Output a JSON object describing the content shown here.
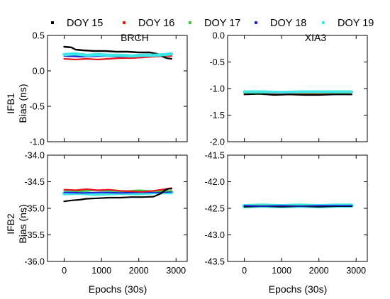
{
  "legend": [
    {
      "label": "DOY 15",
      "color": "#000000"
    },
    {
      "label": "DOY 16",
      "color": "#e8141e"
    },
    {
      "label": "DOY 17",
      "color": "#3ec83e"
    },
    {
      "label": "DOY 18",
      "color": "#2121d6"
    },
    {
      "label": "DOY 19",
      "color": "#3ee6e6"
    }
  ],
  "columns": [
    "BRCH",
    "XIA3"
  ],
  "rows": [
    {
      "label_line1": "IFB1",
      "label_line2": "Bias (ns)"
    },
    {
      "label_line1": "IFB2",
      "label_line2": "Bias (ns)"
    }
  ],
  "xlabel": "Epochs (30s)",
  "chart_data": [
    {
      "type": "line",
      "station": "BRCH",
      "row": "IFB1",
      "xlim": [
        -450,
        3300
      ],
      "ylim": [
        -1.0,
        0.5
      ],
      "xticks": [
        0,
        1000,
        2000,
        3000
      ],
      "yticks": [
        -1.0,
        -0.5,
        0.0,
        0.5
      ],
      "ytick_labels": [
        "-1.0",
        "-0.5",
        "0.0",
        "0.5"
      ],
      "series": [
        {
          "color": "#3ec83e",
          "x": [
            0,
            500,
            1000,
            1500,
            2000,
            2500,
            2880
          ],
          "y": [
            0.22,
            0.21,
            0.22,
            0.21,
            0.2,
            0.21,
            0.23
          ],
          "width": 2.2
        },
        {
          "color": "#2121d6",
          "x": [
            0,
            500,
            1000,
            1500,
            2000,
            2500,
            2880
          ],
          "y": [
            0.21,
            0.2,
            0.21,
            0.2,
            0.2,
            0.21,
            0.22
          ],
          "width": 2.2
        },
        {
          "color": "#e8141e",
          "x": [
            0,
            300,
            600,
            900,
            1200,
            1500,
            1800,
            2100,
            2400,
            2700,
            2880
          ],
          "y": [
            0.17,
            0.16,
            0.17,
            0.16,
            0.17,
            0.18,
            0.18,
            0.19,
            0.2,
            0.21,
            0.21
          ],
          "width": 2.2
        },
        {
          "color": "#000000",
          "x": [
            0,
            200,
            300,
            500,
            800,
            1100,
            1400,
            1700,
            2000,
            2300,
            2500,
            2650,
            2750,
            2880
          ],
          "y": [
            0.34,
            0.33,
            0.3,
            0.29,
            0.28,
            0.28,
            0.27,
            0.27,
            0.26,
            0.26,
            0.24,
            0.2,
            0.18,
            0.17
          ],
          "width": 2.4
        },
        {
          "color": "#3ee6e6",
          "x": [
            0,
            300,
            600,
            900,
            1200,
            1500,
            1800,
            2100,
            2400,
            2700,
            2880
          ],
          "y": [
            0.23,
            0.24,
            0.22,
            0.23,
            0.22,
            0.22,
            0.21,
            0.22,
            0.22,
            0.23,
            0.24
          ],
          "width": 4.5
        }
      ]
    },
    {
      "type": "line",
      "station": "XIA3",
      "row": "IFB1",
      "xlim": [
        -450,
        3300
      ],
      "ylim": [
        -2.0,
        0.0
      ],
      "xticks": [
        0,
        1000,
        2000,
        3000
      ],
      "yticks": [
        -2.0,
        -1.5,
        -1.0,
        -0.5,
        0.0
      ],
      "ytick_labels": [
        "-2.0",
        "-1.5",
        "-1.0",
        "-0.5",
        "0.0"
      ],
      "series": [
        {
          "color": "#e8141e",
          "x": [
            0,
            500,
            1000,
            1500,
            2000,
            2500,
            2880
          ],
          "y": [
            -1.09,
            -1.1,
            -1.09,
            -1.1,
            -1.09,
            -1.09,
            -1.08
          ],
          "width": 2.2
        },
        {
          "color": "#000000",
          "x": [
            0,
            400,
            800,
            1200,
            1600,
            2000,
            2400,
            2880
          ],
          "y": [
            -1.11,
            -1.1,
            -1.12,
            -1.11,
            -1.12,
            -1.12,
            -1.11,
            -1.11
          ],
          "width": 2.2
        },
        {
          "color": "#3ec83e",
          "x": [
            0,
            1000,
            2000,
            2880
          ],
          "y": [
            -1.08,
            -1.08,
            -1.08,
            -1.08
          ],
          "width": 2.0
        },
        {
          "color": "#2121d6",
          "x": [
            0,
            1000,
            2000,
            2880
          ],
          "y": [
            -1.07,
            -1.07,
            -1.07,
            -1.07
          ],
          "width": 2.0
        },
        {
          "color": "#3ee6e6",
          "x": [
            0,
            500,
            1000,
            1500,
            2000,
            2500,
            2880
          ],
          "y": [
            -1.06,
            -1.06,
            -1.07,
            -1.06,
            -1.06,
            -1.06,
            -1.06
          ],
          "width": 4.0
        }
      ]
    },
    {
      "type": "line",
      "station": "BRCH",
      "row": "IFB2",
      "xlim": [
        -450,
        3300
      ],
      "ylim": [
        -36.0,
        -34.0
      ],
      "xticks": [
        0,
        1000,
        2000,
        3000
      ],
      "yticks": [
        -36.0,
        -35.5,
        -35.0,
        -34.5,
        -34.0
      ],
      "ytick_labels": [
        "-36.0",
        "-35.5",
        "-35.0",
        "-34.5",
        "-34.0"
      ],
      "series": [
        {
          "color": "#3ee6e6",
          "x": [
            0,
            400,
            800,
            1200,
            1600,
            2000,
            2400,
            2880
          ],
          "y": [
            -34.72,
            -34.71,
            -34.73,
            -34.72,
            -34.71,
            -34.72,
            -34.7,
            -34.7
          ],
          "width": 5.5
        },
        {
          "color": "#2121d6",
          "x": [
            0,
            500,
            1000,
            1500,
            2000,
            2500,
            2880
          ],
          "y": [
            -34.7,
            -34.71,
            -34.7,
            -34.71,
            -34.7,
            -34.7,
            -34.69
          ],
          "width": 2.0
        },
        {
          "color": "#3ec83e",
          "x": [
            0,
            400,
            800,
            1200,
            1600,
            2000,
            2400,
            2880
          ],
          "y": [
            -34.66,
            -34.68,
            -34.66,
            -34.67,
            -34.68,
            -34.66,
            -34.68,
            -34.67
          ],
          "width": 2.2
        },
        {
          "color": "#e8141e",
          "x": [
            0,
            300,
            600,
            900,
            1200,
            1500,
            1800,
            2100,
            2400,
            2700,
            2880
          ],
          "y": [
            -34.65,
            -34.66,
            -34.64,
            -34.66,
            -34.65,
            -34.67,
            -34.68,
            -34.69,
            -34.67,
            -34.64,
            -34.62
          ],
          "width": 2.2
        },
        {
          "color": "#000000",
          "x": [
            0,
            200,
            400,
            600,
            900,
            1200,
            1500,
            1800,
            2100,
            2400,
            2600,
            2700,
            2800,
            2880
          ],
          "y": [
            -34.87,
            -34.85,
            -34.84,
            -34.82,
            -34.81,
            -34.8,
            -34.8,
            -34.79,
            -34.79,
            -34.78,
            -34.72,
            -34.66,
            -34.63,
            -34.63
          ],
          "width": 2.2
        }
      ]
    },
    {
      "type": "line",
      "station": "XIA3",
      "row": "IFB2",
      "xlim": [
        -450,
        3300
      ],
      "ylim": [
        -43.5,
        -41.5
      ],
      "xticks": [
        0,
        1000,
        2000,
        3000
      ],
      "yticks": [
        -43.5,
        -43.0,
        -42.5,
        -42.0,
        -41.5
      ],
      "ytick_labels": [
        "-43.5",
        "-43.0",
        "-42.5",
        "-42.0",
        "-41.5"
      ],
      "series": [
        {
          "color": "#3ee6e6",
          "x": [
            0,
            500,
            1000,
            1500,
            2000,
            2500,
            2880
          ],
          "y": [
            -42.46,
            -42.45,
            -42.46,
            -42.45,
            -42.46,
            -42.45,
            -42.45
          ],
          "width": 6.0
        },
        {
          "color": "#3ec83e",
          "x": [
            0,
            1000,
            2000,
            2880
          ],
          "y": [
            -42.45,
            -42.45,
            -42.45,
            -42.45
          ],
          "width": 1.8
        },
        {
          "color": "#e8141e",
          "x": [
            0,
            1000,
            2000,
            2880
          ],
          "y": [
            -42.46,
            -42.46,
            -42.46,
            -42.46
          ],
          "width": 1.8
        },
        {
          "color": "#000000",
          "x": [
            0,
            500,
            1000,
            1500,
            2000,
            2500,
            2880
          ],
          "y": [
            -42.47,
            -42.46,
            -42.47,
            -42.46,
            -42.47,
            -42.46,
            -42.46
          ],
          "width": 2.0
        },
        {
          "color": "#2121d6",
          "x": [
            0,
            500,
            1000,
            1500,
            2000,
            2500,
            2880
          ],
          "y": [
            -42.45,
            -42.46,
            -42.45,
            -42.46,
            -42.45,
            -42.45,
            -42.45
          ],
          "width": 1.8
        }
      ]
    }
  ]
}
